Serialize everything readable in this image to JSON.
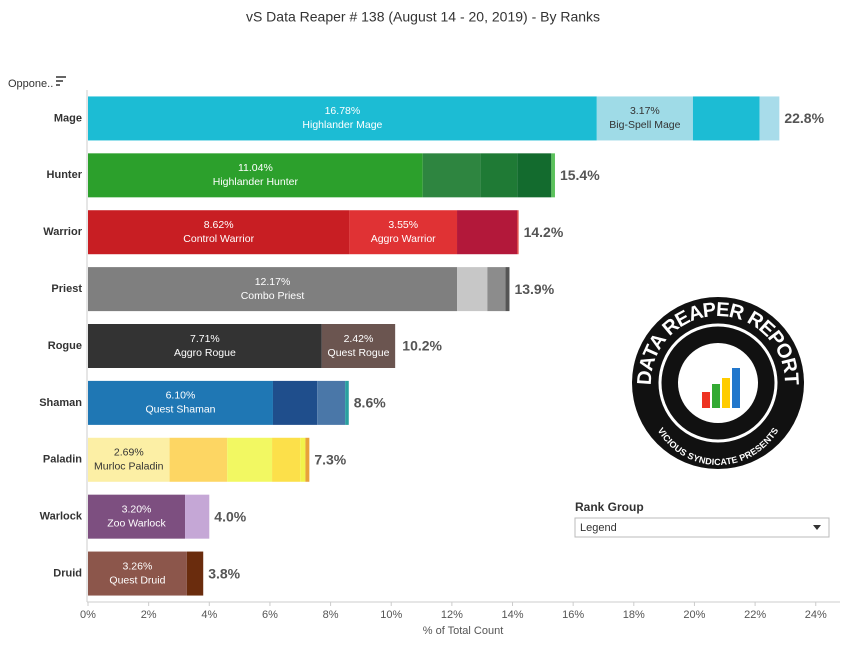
{
  "chart_data": {
    "type": "stacked-bar",
    "title": "vS Data Reaper #  138 (August 14 - 20, 2019) - By Ranks",
    "row_header": "Oppone..",
    "x_label": "% of Total Count",
    "xlim": [
      0,
      24.8
    ],
    "xticks": [
      {
        "value": 0,
        "label": "0%"
      },
      {
        "value": 2,
        "label": "2%"
      },
      {
        "value": 4,
        "label": "4%"
      },
      {
        "value": 6,
        "label": "6%"
      },
      {
        "value": 8,
        "label": "8%"
      },
      {
        "value": 10,
        "label": "10%"
      },
      {
        "value": 12,
        "label": "12%"
      },
      {
        "value": 14,
        "label": "14%"
      },
      {
        "value": 16,
        "label": "16%"
      },
      {
        "value": 18,
        "label": "18%"
      },
      {
        "value": 20,
        "label": "20%"
      },
      {
        "value": 22,
        "label": "22%"
      },
      {
        "value": 24,
        "label": "24%"
      }
    ],
    "bars": [
      {
        "category": "Mage",
        "total": 22.8,
        "total_label": "22.8%",
        "segments": [
          {
            "value": 16.78,
            "value_label": "16.78%",
            "name": "Highlander Mage",
            "color": "#1cbcd4"
          },
          {
            "value": 3.17,
            "value_label": "3.17%",
            "name": "Big-Spell Mage",
            "color": "#9fdbe7"
          },
          {
            "value": 2.2,
            "color": "#1cbcd4"
          },
          {
            "value": 0.65,
            "color": "#a8dcea"
          }
        ]
      },
      {
        "category": "Hunter",
        "total": 15.4,
        "total_label": "15.4%",
        "segments": [
          {
            "value": 11.04,
            "value_label": "11.04%",
            "name": "Highlander Hunter",
            "color": "#2ca02c"
          },
          {
            "value": 1.9,
            "color": "#2e8540"
          },
          {
            "value": 1.22,
            "color": "#1f7a35"
          },
          {
            "value": 1.12,
            "color": "#136b2e"
          },
          {
            "value": 0.12,
            "color": "#5bc25b"
          }
        ]
      },
      {
        "category": "Warrior",
        "total": 14.2,
        "total_label": "14.2%",
        "segments": [
          {
            "value": 8.62,
            "value_label": "8.62%",
            "name": "Control Warrior",
            "color": "#c81e23"
          },
          {
            "value": 3.55,
            "value_label": "3.55%",
            "name": "Aggro Warrior",
            "color": "#e03234"
          },
          {
            "value": 1.98,
            "color": "#b3183a"
          },
          {
            "value": 0.05,
            "color": "#dd4444"
          }
        ]
      },
      {
        "category": "Priest",
        "total": 13.9,
        "total_label": "13.9%",
        "segments": [
          {
            "value": 12.17,
            "value_label": "12.17%",
            "name": "Combo Priest",
            "color": "#7f7f7f"
          },
          {
            "value": 1.0,
            "color": "#c7c7c7"
          },
          {
            "value": 0.6,
            "color": "#8c8c8c"
          },
          {
            "value": 0.13,
            "color": "#555555"
          }
        ]
      },
      {
        "category": "Rogue",
        "total": 10.2,
        "total_label": "10.2%",
        "segments": [
          {
            "value": 7.71,
            "value_label": "7.71%",
            "name": "Aggro Rogue",
            "color": "#333333"
          },
          {
            "value": 2.42,
            "value_label": "2.42%",
            "name": "Quest Rogue",
            "color": "#6b5550"
          }
        ]
      },
      {
        "category": "Shaman",
        "total": 8.6,
        "total_label": "8.6%",
        "segments": [
          {
            "value": 6.1,
            "value_label": "6.10%",
            "name": "Quest Shaman",
            "color": "#1f77b4"
          },
          {
            "value": 1.46,
            "color": "#1f4e8c"
          },
          {
            "value": 0.92,
            "color": "#4a77a8"
          },
          {
            "value": 0.12,
            "color": "#2aa0a0"
          }
        ]
      },
      {
        "category": "Paladin",
        "total": 7.3,
        "total_label": "7.3%",
        "segments": [
          {
            "value": 2.69,
            "value_label": "2.69%",
            "name": "Murloc Paladin",
            "color": "#fcefa5"
          },
          {
            "value": 1.9,
            "color": "#fdd663"
          },
          {
            "value": 1.48,
            "color": "#f2f862"
          },
          {
            "value": 0.93,
            "color": "#fce04a"
          },
          {
            "value": 0.17,
            "color": "#f2f24a"
          },
          {
            "value": 0.13,
            "color": "#e8a23a"
          }
        ]
      },
      {
        "category": "Warlock",
        "total": 4.0,
        "total_label": "4.0%",
        "segments": [
          {
            "value": 3.2,
            "value_label": "3.20%",
            "name": "Zoo Warlock",
            "color": "#7d4f80"
          },
          {
            "value": 0.8,
            "color": "#c5a7d6"
          }
        ]
      },
      {
        "category": "Druid",
        "total": 3.8,
        "total_label": "3.8%",
        "segments": [
          {
            "value": 3.26,
            "value_label": "3.26%",
            "name": "Quest Druid",
            "color": "#8c564b"
          },
          {
            "value": 0.54,
            "color": "#6a2c0d"
          }
        ]
      }
    ],
    "filter": {
      "title": "Rank Group",
      "selected": "Legend"
    },
    "logo": {
      "top": "DATA REAPER REPORT",
      "bottom": "VICIOUS SYNDICATE PRESENTS"
    }
  }
}
